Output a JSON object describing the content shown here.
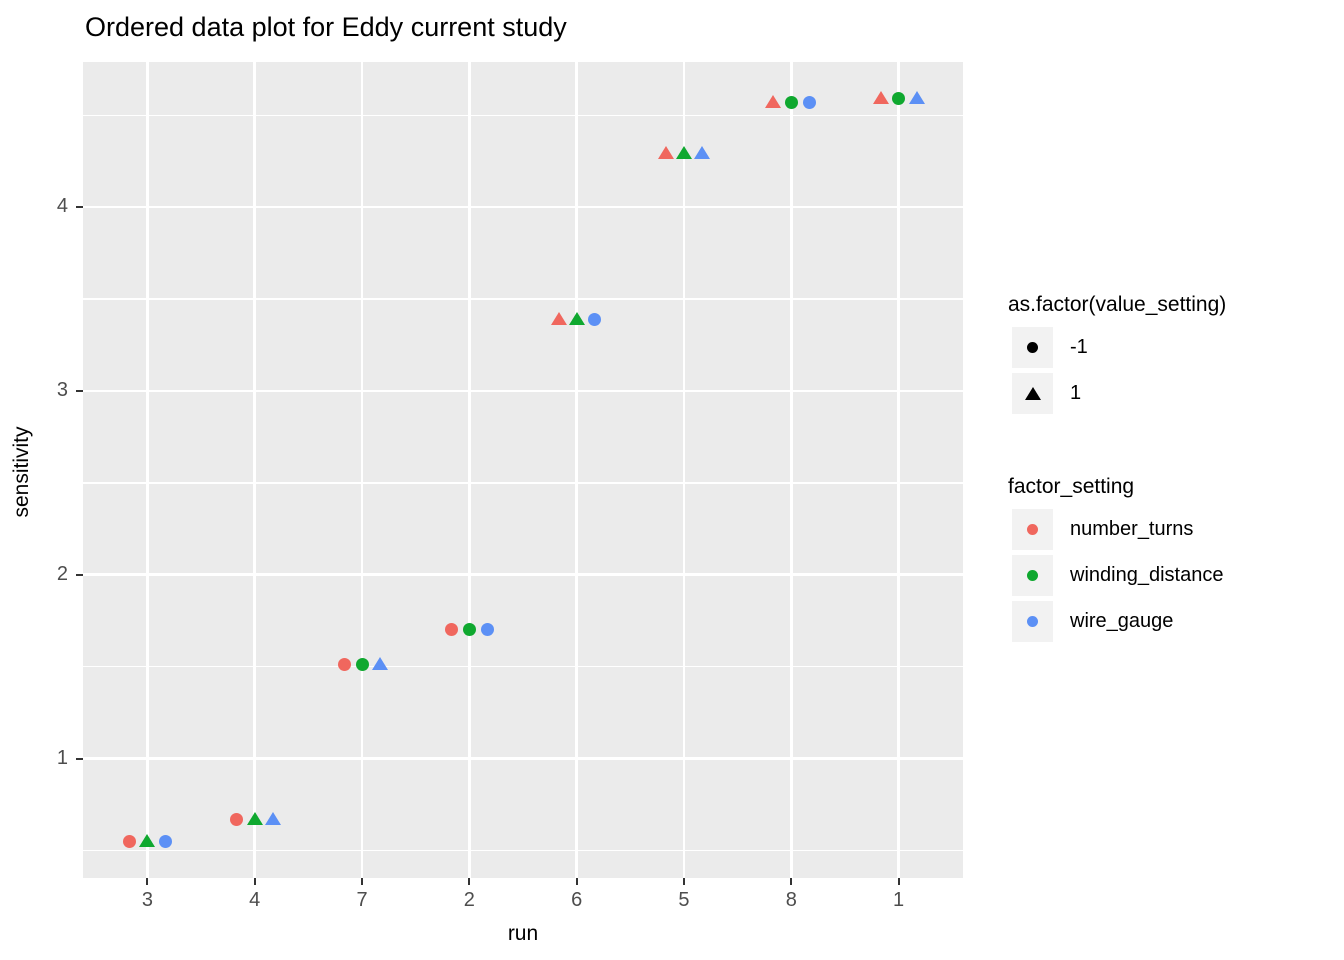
{
  "chart_data": {
    "type": "scatter",
    "title": "Ordered data plot for Eddy current study",
    "xlabel": "run",
    "ylabel": "sensitivity",
    "x_categories": [
      "3",
      "4",
      "7",
      "2",
      "6",
      "5",
      "8",
      "1"
    ],
    "y_major_ticks": [
      1,
      2,
      3,
      4
    ],
    "y_minor_ticks": [
      0.5,
      1.5,
      2.5,
      3.5,
      4.5
    ],
    "ylim": [
      0.35,
      4.79
    ],
    "grid": true,
    "legend_position": "right",
    "panel_background": "#EBEBEB",
    "gridline_color": "#FFFFFF",
    "factors": [
      "number_turns",
      "winding_distance",
      "wire_gauge"
    ],
    "factor_colors": {
      "number_turns": "#F0675E",
      "winding_distance": "#0FA82F",
      "wire_gauge": "#5C90F5"
    },
    "shape_by_value_setting": {
      "-1": "circle",
      "1": "triangle"
    },
    "runs": [
      {
        "run": "3",
        "sensitivity": 0.55,
        "value_settings": {
          "number_turns": -1,
          "winding_distance": 1,
          "wire_gauge": -1
        }
      },
      {
        "run": "4",
        "sensitivity": 0.67,
        "value_settings": {
          "number_turns": -1,
          "winding_distance": 1,
          "wire_gauge": 1
        }
      },
      {
        "run": "7",
        "sensitivity": 1.51,
        "value_settings": {
          "number_turns": -1,
          "winding_distance": -1,
          "wire_gauge": 1
        }
      },
      {
        "run": "2",
        "sensitivity": 1.7,
        "value_settings": {
          "number_turns": -1,
          "winding_distance": -1,
          "wire_gauge": -1
        }
      },
      {
        "run": "6",
        "sensitivity": 3.39,
        "value_settings": {
          "number_turns": 1,
          "winding_distance": 1,
          "wire_gauge": -1
        }
      },
      {
        "run": "5",
        "sensitivity": 4.29,
        "value_settings": {
          "number_turns": 1,
          "winding_distance": 1,
          "wire_gauge": 1
        }
      },
      {
        "run": "8",
        "sensitivity": 4.57,
        "value_settings": {
          "number_turns": 1,
          "winding_distance": -1,
          "wire_gauge": -1
        }
      },
      {
        "run": "1",
        "sensitivity": 4.59,
        "value_settings": {
          "number_turns": 1,
          "winding_distance": -1,
          "wire_gauge": 1
        }
      }
    ]
  },
  "legends": {
    "shape": {
      "title": "as.factor(value_setting)",
      "entries": [
        {
          "label": "-1",
          "shape": "circle",
          "color": "#000000"
        },
        {
          "label": "1",
          "shape": "triangle",
          "color": "#000000"
        }
      ]
    },
    "color": {
      "title": "factor_setting",
      "entries": [
        {
          "label": "number_turns",
          "shape": "circle",
          "color": "#F0675E"
        },
        {
          "label": "winding_distance",
          "shape": "circle",
          "color": "#0FA82F"
        },
        {
          "label": "wire_gauge",
          "shape": "circle",
          "color": "#5C90F5"
        }
      ]
    }
  }
}
